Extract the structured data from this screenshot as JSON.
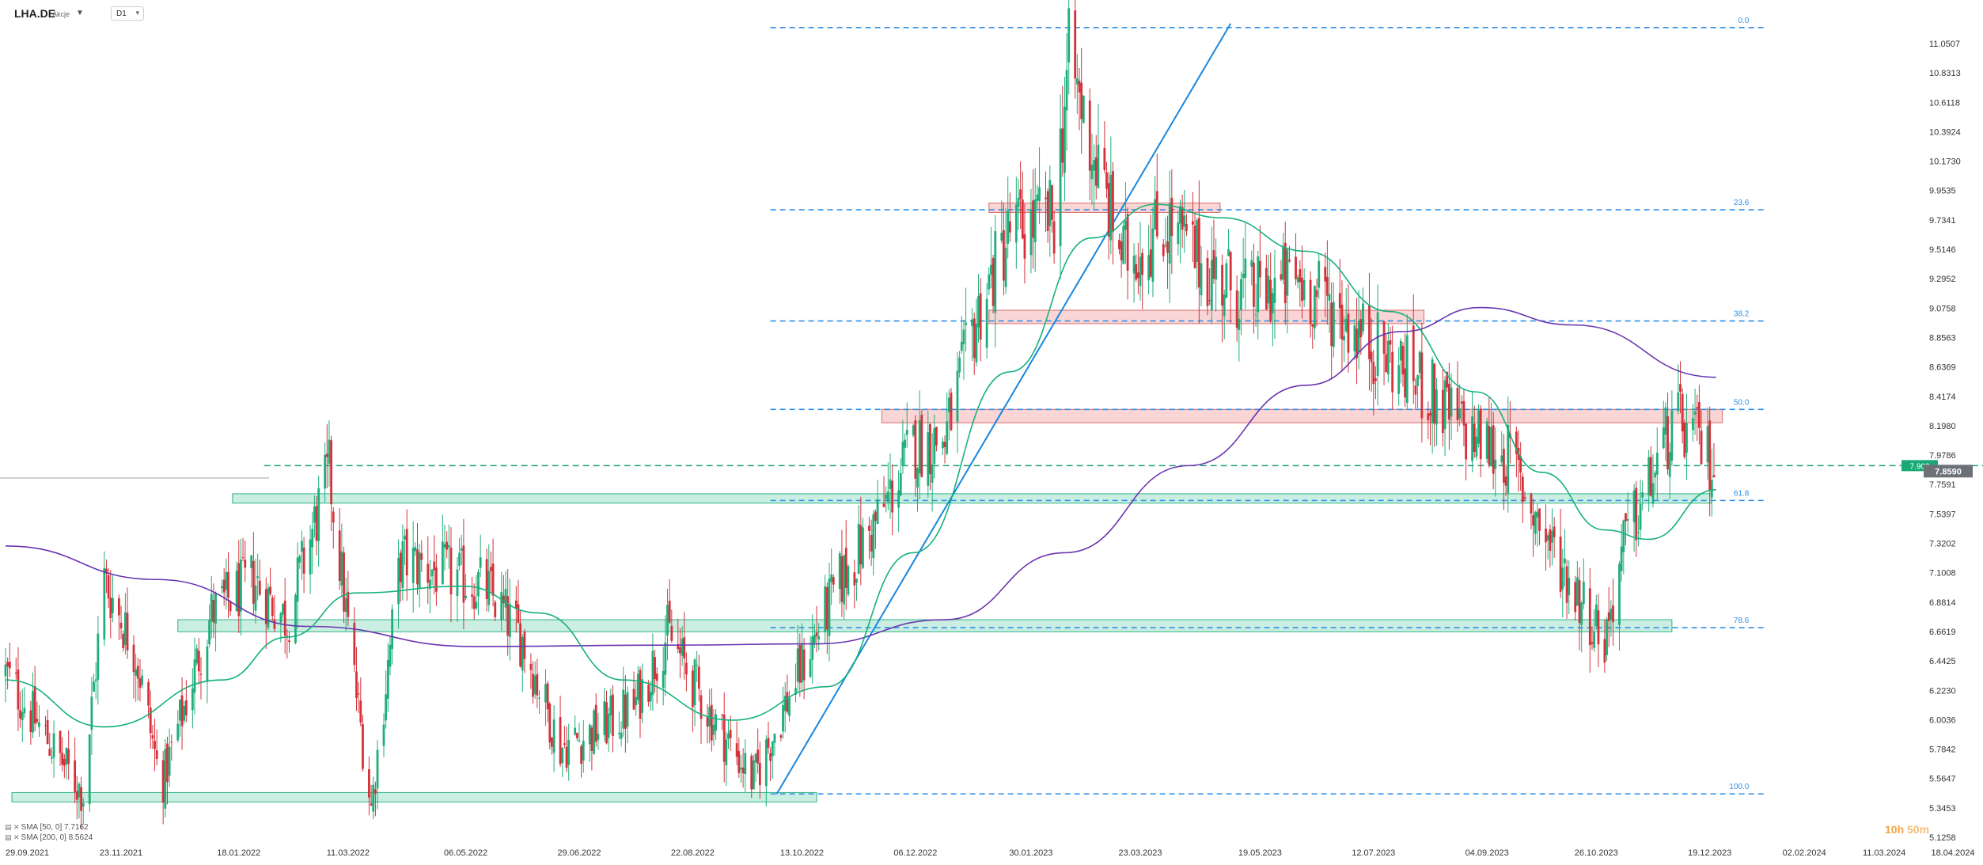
{
  "toolbar": {
    "symbol": "LHA.DE",
    "asset_type": "Akcje",
    "timeframe": "D1"
  },
  "legend": {
    "sma50": "SMA [50, 0] 7.7162",
    "sma200": "SMA [200, 0] 8.5624"
  },
  "timer": {
    "hours": "10h",
    "minutes": "50m"
  },
  "colors": {
    "fib_line": "#2f8fe8",
    "resistance_zone": "#f4b3b3",
    "support_zone": "#9fe0c8",
    "sma50": "#17b07e",
    "sma200": "#6a35b0",
    "bull": "#1fae7b",
    "bear": "#d4323a",
    "trendline": "#1787e0",
    "price_tag": "#19a974",
    "last_tag": "#6b7177"
  },
  "chart_data": {
    "type": "candlestick",
    "symbol": "LHA.DE",
    "timeframe": "D1",
    "y_ticks": [
      "11.0507",
      "10.8313",
      "10.6118",
      "10.3924",
      "10.1730",
      "9.9535",
      "9.7341",
      "9.5146",
      "9.2952",
      "9.0758",
      "8.8563",
      "8.6369",
      "8.4174",
      "8.1980",
      "7.9786",
      "7.7591",
      "7.5397",
      "7.3202",
      "7.1008",
      "6.8814",
      "6.6619",
      "6.4425",
      "6.2230",
      "6.0036",
      "5.7842",
      "5.5647",
      "5.3453",
      "5.1258"
    ],
    "x_ticks": [
      "29.09.2021",
      "23.11.2021",
      "18.01.2022",
      "11.03.2022",
      "06.05.2022",
      "29.06.2022",
      "22.08.2022",
      "13.10.2022",
      "06.12.2022",
      "30.01.2023",
      "23.03.2023",
      "19.05.2023",
      "12.07.2023",
      "04.09.2023",
      "26.10.2023",
      "19.12.2023",
      "02.02.2024",
      "11.03.2024",
      "18.04.2024"
    ],
    "ylim": [
      5.13,
      11.25
    ],
    "current_price": "7.8590",
    "alert_price": "7.900",
    "fibonacci": [
      {
        "label": "0.0",
        "price": 11.17
      },
      {
        "label": "23.6",
        "price": 9.81
      },
      {
        "label": "38.2",
        "price": 8.98
      },
      {
        "label": "50.0",
        "price": 8.32
      },
      {
        "label": "61.8",
        "price": 7.64
      },
      {
        "label": "78.6",
        "price": 6.69
      },
      {
        "label": "100.0",
        "price": 5.45
      }
    ],
    "close_path": [
      {
        "date": "2021-09-29",
        "close": 6.35
      },
      {
        "date": "2021-10-15",
        "close": 5.95
      },
      {
        "date": "2021-11-05",
        "close": 5.45
      },
      {
        "date": "2021-11-15",
        "close": 7.05
      },
      {
        "date": "2021-11-30",
        "close": 6.5
      },
      {
        "date": "2021-12-12",
        "close": 5.5
      },
      {
        "date": "2022-01-05",
        "close": 6.8
      },
      {
        "date": "2022-01-25",
        "close": 7.05
      },
      {
        "date": "2022-02-10",
        "close": 6.75
      },
      {
        "date": "2022-03-02",
        "close": 7.85
      },
      {
        "date": "2022-03-12",
        "close": 6.55
      },
      {
        "date": "2022-03-22",
        "close": 5.35
      },
      {
        "date": "2022-04-05",
        "close": 7.2
      },
      {
        "date": "2022-04-25",
        "close": 7.1
      },
      {
        "date": "2022-05-15",
        "close": 7.0
      },
      {
        "date": "2022-06-02",
        "close": 6.6
      },
      {
        "date": "2022-06-20",
        "close": 5.8
      },
      {
        "date": "2022-07-05",
        "close": 5.9
      },
      {
        "date": "2022-07-25",
        "close": 6.1
      },
      {
        "date": "2022-08-10",
        "close": 6.65
      },
      {
        "date": "2022-08-30",
        "close": 6.05
      },
      {
        "date": "2022-09-20",
        "close": 5.55
      },
      {
        "date": "2022-10-10",
        "close": 6.3
      },
      {
        "date": "2022-10-30",
        "close": 7.0
      },
      {
        "date": "2022-11-20",
        "close": 7.55
      },
      {
        "date": "2022-12-05",
        "close": 8.05
      },
      {
        "date": "2022-12-20",
        "close": 8.1
      },
      {
        "date": "2023-01-05",
        "close": 9.05
      },
      {
        "date": "2023-01-20",
        "close": 9.65
      },
      {
        "date": "2023-02-10",
        "close": 9.75
      },
      {
        "date": "2023-02-17",
        "close": 10.95
      },
      {
        "date": "2023-03-01",
        "close": 10.2
      },
      {
        "date": "2023-03-15",
        "close": 9.45
      },
      {
        "date": "2023-04-05",
        "close": 9.7
      },
      {
        "date": "2023-04-25",
        "close": 9.35
      },
      {
        "date": "2023-05-15",
        "close": 9.15
      },
      {
        "date": "2023-06-05",
        "close": 9.3
      },
      {
        "date": "2023-06-25",
        "close": 9.05
      },
      {
        "date": "2023-07-15",
        "close": 8.75
      },
      {
        "date": "2023-08-01",
        "close": 8.55
      },
      {
        "date": "2023-08-25",
        "close": 8.15
      },
      {
        "date": "2023-09-15",
        "close": 7.95
      },
      {
        "date": "2023-10-01",
        "close": 7.4
      },
      {
        "date": "2023-10-15",
        "close": 7.0
      },
      {
        "date": "2023-10-30",
        "close": 6.6
      },
      {
        "date": "2023-11-08",
        "close": 7.3
      },
      {
        "date": "2023-11-20",
        "close": 7.75
      },
      {
        "date": "2023-11-30",
        "close": 8.15
      },
      {
        "date": "2023-12-05",
        "close": 8.2
      },
      {
        "date": "2023-12-15",
        "close": 8.05
      },
      {
        "date": "2023-12-22",
        "close": 7.86
      }
    ],
    "sma50": [
      {
        "date": "2021-09-29",
        "value": 6.3
      },
      {
        "date": "2021-11-15",
        "value": 5.95
      },
      {
        "date": "2022-01-10",
        "value": 6.3
      },
      {
        "date": "2022-02-10",
        "value": 6.62
      },
      {
        "date": "2022-03-15",
        "value": 6.95
      },
      {
        "date": "2022-05-05",
        "value": 7.0
      },
      {
        "date": "2022-06-10",
        "value": 6.8
      },
      {
        "date": "2022-07-20",
        "value": 6.3
      },
      {
        "date": "2022-09-10",
        "value": 6.0
      },
      {
        "date": "2022-10-25",
        "value": 6.25
      },
      {
        "date": "2022-12-05",
        "value": 7.25
      },
      {
        "date": "2023-01-20",
        "value": 8.6
      },
      {
        "date": "2023-02-28",
        "value": 9.6
      },
      {
        "date": "2023-03-30",
        "value": 9.85
      },
      {
        "date": "2023-05-01",
        "value": 9.75
      },
      {
        "date": "2023-06-10",
        "value": 9.5
      },
      {
        "date": "2023-07-20",
        "value": 9.05
      },
      {
        "date": "2023-08-30",
        "value": 8.45
      },
      {
        "date": "2023-09-30",
        "value": 7.85
      },
      {
        "date": "2023-10-30",
        "value": 7.42
      },
      {
        "date": "2023-11-20",
        "value": 7.35
      },
      {
        "date": "2023-12-22",
        "value": 7.72
      }
    ],
    "sma200": [
      {
        "date": "2021-09-29",
        "value": 7.3
      },
      {
        "date": "2021-12-10",
        "value": 7.05
      },
      {
        "date": "2022-02-20",
        "value": 6.7
      },
      {
        "date": "2022-05-10",
        "value": 6.55
      },
      {
        "date": "2022-08-10",
        "value": 6.56
      },
      {
        "date": "2022-10-20",
        "value": 6.57
      },
      {
        "date": "2022-12-20",
        "value": 6.75
      },
      {
        "date": "2023-02-15",
        "value": 7.25
      },
      {
        "date": "2023-04-15",
        "value": 7.9
      },
      {
        "date": "2023-06-10",
        "value": 8.5
      },
      {
        "date": "2023-07-25",
        "value": 8.9
      },
      {
        "date": "2023-09-01",
        "value": 9.08
      },
      {
        "date": "2023-10-15",
        "value": 8.95
      },
      {
        "date": "2023-12-22",
        "value": 8.56
      }
    ],
    "zones": [
      {
        "kind": "resistance",
        "from": "2023-01-10",
        "to": "2023-04-30",
        "low": 9.79,
        "high": 9.86
      },
      {
        "kind": "resistance",
        "from": "2023-01-10",
        "to": "2023-08-05",
        "low": 8.96,
        "high": 9.06
      },
      {
        "kind": "resistance",
        "from": "2022-11-20",
        "to": "2023-12-25",
        "low": 8.22,
        "high": 8.32
      },
      {
        "kind": "support",
        "from": "2022-01-15",
        "to": "2023-12-20",
        "low": 7.62,
        "high": 7.69
      },
      {
        "kind": "support",
        "from": "2021-12-20",
        "to": "2023-12-01",
        "low": 6.66,
        "high": 6.75
      },
      {
        "kind": "support",
        "from": "2021-10-02",
        "to": "2022-10-20",
        "low": 5.39,
        "high": 5.46
      }
    ],
    "level_lines": [
      {
        "price": 7.9,
        "from": "2022-01-30",
        "to": "2024-04-28",
        "style": "dashed-green"
      }
    ],
    "trendline": {
      "from": {
        "date": "2022-10-01",
        "price": 5.45
      },
      "to": {
        "date": "2023-05-05",
        "price": 11.2
      }
    }
  }
}
